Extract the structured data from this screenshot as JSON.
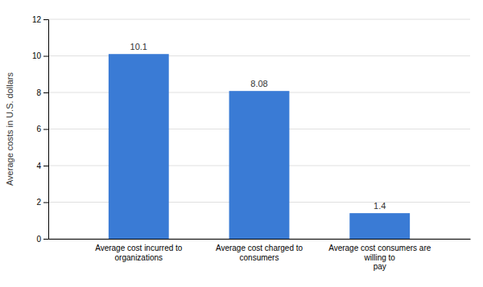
{
  "chart_data": {
    "type": "bar",
    "categories": [
      "Average cost incurred to organizations",
      "Average cost charged to consumers",
      "Average cost consumers are willing to\npay"
    ],
    "values": [
      10.1,
      8.08,
      1.4
    ],
    "color": "#3a7bd5",
    "ylabel": "Average costs in U.S. dollars",
    "ylim": [
      0,
      12
    ],
    "yticks": [
      0,
      2,
      4,
      6,
      8,
      10,
      12
    ],
    "grid": true,
    "data_labels": true
  }
}
